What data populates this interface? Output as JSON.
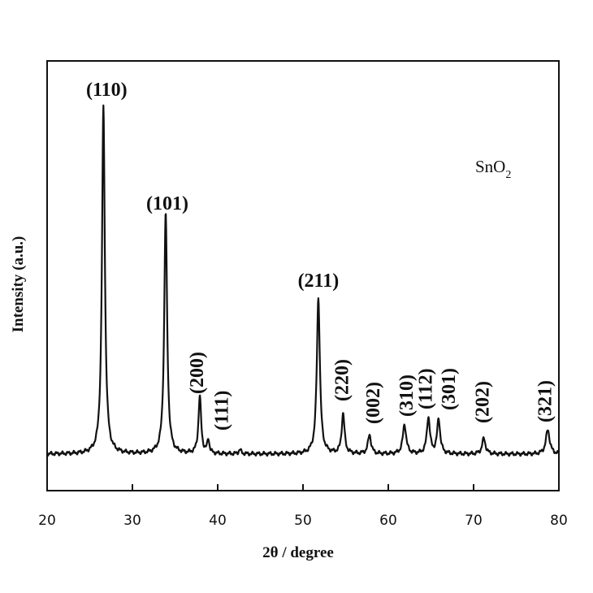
{
  "chart_data": {
    "type": "line",
    "xlabel": "2θ / degree",
    "ylabel": "Intensity (a.u.)",
    "xlim": [
      20,
      80
    ],
    "x_ticks": [
      "20",
      "30",
      "40",
      "50",
      "60",
      "70",
      "80"
    ],
    "sample_label": {
      "base": "SnO",
      "subscript": "2"
    },
    "baseline": 0.11,
    "grid": false,
    "legend": "none",
    "peaks": [
      {
        "x": 26.6,
        "y": 1.0,
        "width": 0.3,
        "label": "(110)"
      },
      {
        "x": 33.9,
        "y": 0.695,
        "width": 0.3,
        "label": "(101)"
      },
      {
        "x": 37.9,
        "y": 0.165,
        "width": 0.28,
        "label": "(200)"
      },
      {
        "x": 38.9,
        "y": 0.04,
        "width": 0.22,
        "label": "(111)"
      },
      {
        "x": 42.6,
        "y": 0.012,
        "width": 0.25,
        "label": ""
      },
      {
        "x": 51.8,
        "y": 0.45,
        "width": 0.32,
        "label": "(211)"
      },
      {
        "x": 54.7,
        "y": 0.115,
        "width": 0.3,
        "label": "(220)"
      },
      {
        "x": 57.8,
        "y": 0.055,
        "width": 0.32,
        "label": "(002)"
      },
      {
        "x": 61.9,
        "y": 0.085,
        "width": 0.35,
        "label": "(310)"
      },
      {
        "x": 64.7,
        "y": 0.105,
        "width": 0.32,
        "label": "(112)"
      },
      {
        "x": 65.9,
        "y": 0.1,
        "width": 0.32,
        "label": "(301)"
      },
      {
        "x": 71.2,
        "y": 0.045,
        "width": 0.35,
        "label": "(202)"
      },
      {
        "x": 78.7,
        "y": 0.07,
        "width": 0.4,
        "label": "(321)"
      }
    ]
  }
}
